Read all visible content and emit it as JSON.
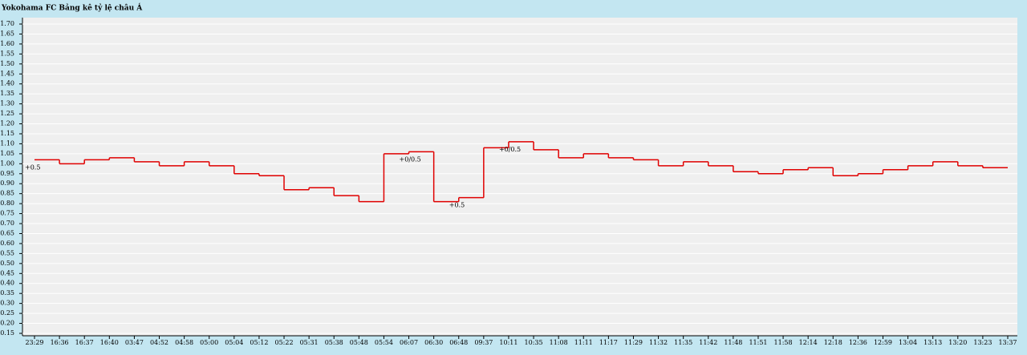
{
  "title": "Yokohama FC Bảng kê tỷ lệ châu Á",
  "chart_data": {
    "type": "step",
    "categories": [
      "23:29",
      "16:36",
      "16:37",
      "16:40",
      "03:47",
      "04:52",
      "04:58",
      "05:00",
      "05:04",
      "05:12",
      "05:22",
      "05:31",
      "05:38",
      "05:48",
      "05:54",
      "06:07",
      "06:30",
      "06:48",
      "09:37",
      "10:11",
      "10:35",
      "11:08",
      "11:11",
      "11:17",
      "11:29",
      "11:32",
      "11:35",
      "11:42",
      "11:48",
      "11:51",
      "11:58",
      "12:14",
      "12:18",
      "12:36",
      "12:59",
      "13:04",
      "13:13",
      "13:20",
      "13:23",
      "13:37"
    ],
    "values": [
      1.02,
      1.0,
      1.02,
      1.03,
      1.01,
      0.99,
      1.01,
      0.99,
      0.95,
      0.94,
      0.87,
      0.88,
      0.84,
      0.81,
      1.05,
      1.06,
      0.81,
      0.83,
      1.08,
      1.11,
      1.07,
      1.03,
      1.05,
      1.03,
      1.02,
      0.99,
      1.01,
      0.99,
      0.96,
      0.95,
      0.97,
      0.98,
      0.94,
      0.95,
      0.97,
      0.99,
      1.01,
      0.99,
      0.98,
      0.98
    ],
    "color": "#e00000",
    "annotations": [
      {
        "category": "23:29",
        "text": "+0.5"
      },
      {
        "category": "06:07",
        "text": "+0/0.5"
      },
      {
        "category": "06:48",
        "text": "+0.5"
      },
      {
        "category": "10:11",
        "text": "+0/0.5"
      }
    ],
    "ylim": [
      0.15,
      1.7
    ],
    "yticks": [
      {
        "value": 0.15,
        "label": "0.15"
      },
      {
        "value": 0.2,
        "label": "0.20"
      },
      {
        "value": 0.25,
        "label": "0.25"
      },
      {
        "value": 0.3,
        "label": "0.30"
      },
      {
        "value": 0.35,
        "label": "0.35"
      },
      {
        "value": 0.4,
        "label": "0.40"
      },
      {
        "value": 0.45,
        "label": "0.45"
      },
      {
        "value": 0.5,
        "label": "0.50"
      },
      {
        "value": 0.55,
        "label": "0.55"
      },
      {
        "value": 0.6,
        "label": "0.60"
      },
      {
        "value": 0.65,
        "label": "0.65"
      },
      {
        "value": 0.7,
        "label": "0.70"
      },
      {
        "value": 0.75,
        "label": "0.75"
      },
      {
        "value": 0.8,
        "label": "0.80"
      },
      {
        "value": 0.85,
        "label": "0.85"
      },
      {
        "value": 0.9,
        "label": "0.90"
      },
      {
        "value": 0.95,
        "label": "0.95"
      },
      {
        "value": 1.0,
        "label": "1.00"
      },
      {
        "value": 1.05,
        "label": "1.05"
      },
      {
        "value": 1.1,
        "label": "1.10"
      },
      {
        "value": 1.15,
        "label": "1.15"
      },
      {
        "value": 1.2,
        "label": "1.20"
      },
      {
        "value": 1.25,
        "label": "1.25"
      },
      {
        "value": 1.3,
        "label": "1.30"
      },
      {
        "value": 1.35,
        "label": "1.35"
      },
      {
        "value": 1.4,
        "label": "1.40"
      },
      {
        "value": 1.45,
        "label": "1.45"
      },
      {
        "value": 1.5,
        "label": "1.50"
      },
      {
        "value": 1.55,
        "label": "1.55"
      },
      {
        "value": 1.6,
        "label": "1.60"
      },
      {
        "value": 1.65,
        "label": "1.65"
      },
      {
        "value": 1.7,
        "label": "1.70"
      }
    ],
    "grid": true
  }
}
